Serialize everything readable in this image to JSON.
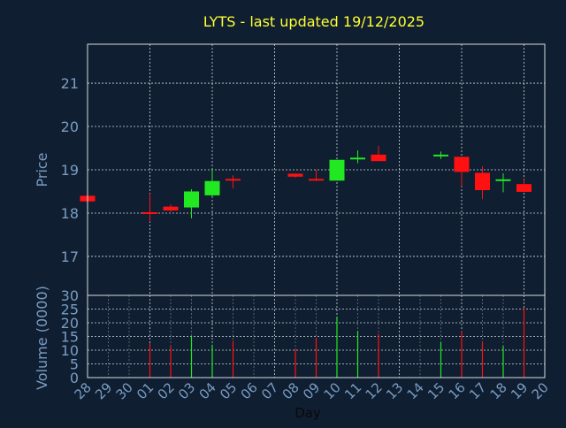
{
  "colors": {
    "background": "#0f1e30",
    "title": "#ffff33",
    "axis_text": "#7a9cc2",
    "grid": "#d0d8e0",
    "up": "#22e822",
    "down": "#ff1111",
    "frame": "#d8dde3"
  },
  "chart_data": [
    {
      "type": "candlestick",
      "title": "LYTS - last updated 19/12/2025",
      "ylabel": "Price",
      "ylim": [
        16.1,
        21.9
      ],
      "yticks": [
        17,
        18,
        19,
        20,
        21
      ],
      "grid": true,
      "x": [
        "28",
        "29",
        "30",
        "01",
        "02",
        "03",
        "04",
        "05",
        "06",
        "07",
        "08",
        "09",
        "10",
        "11",
        "12",
        "13",
        "14",
        "15",
        "16",
        "17",
        "18",
        "19",
        "20"
      ],
      "series": [
        {
          "candles": [
            {
              "x": "28",
              "open": 18.4,
              "close": 18.27,
              "high": 18.4,
              "low": 18.27
            },
            {
              "x": "01",
              "open": 18.02,
              "close": 17.98,
              "high": 18.45,
              "low": 17.8
            },
            {
              "x": "02",
              "open": 18.15,
              "close": 18.06,
              "high": 18.2,
              "low": 18.03
            },
            {
              "x": "03",
              "open": 18.13,
              "close": 18.5,
              "high": 18.55,
              "low": 17.88
            },
            {
              "x": "04",
              "open": 18.41,
              "close": 18.74,
              "high": 19.02,
              "low": 18.38
            },
            {
              "x": "05",
              "open": 18.79,
              "close": 18.75,
              "high": 18.87,
              "low": 18.57
            },
            {
              "x": "08",
              "open": 18.91,
              "close": 18.84,
              "high": 18.91,
              "low": 18.82
            },
            {
              "x": "09",
              "open": 18.79,
              "close": 18.75,
              "high": 19.0,
              "low": 18.74
            },
            {
              "x": "10",
              "open": 18.75,
              "close": 19.23,
              "high": 19.23,
              "low": 18.75
            },
            {
              "x": "11",
              "open": 19.27,
              "close": 19.28,
              "high": 19.45,
              "low": 19.15
            },
            {
              "x": "12",
              "open": 19.35,
              "close": 19.2,
              "high": 19.55,
              "low": 19.2
            },
            {
              "x": "15",
              "open": 19.33,
              "close": 19.35,
              "high": 19.42,
              "low": 19.25
            },
            {
              "x": "16",
              "open": 19.3,
              "close": 18.95,
              "high": 19.3,
              "low": 18.62
            },
            {
              "x": "17",
              "open": 18.93,
              "close": 18.53,
              "high": 19.08,
              "low": 18.32
            },
            {
              "x": "18",
              "open": 18.76,
              "close": 18.78,
              "high": 18.92,
              "low": 18.48
            },
            {
              "x": "19",
              "open": 18.67,
              "close": 18.49,
              "high": 18.78,
              "low": 18.49
            }
          ]
        }
      ]
    },
    {
      "type": "bar",
      "ylabel": "Volume (0000)",
      "xlabel": "Day",
      "ylim": [
        0,
        30
      ],
      "yticks": [
        0,
        5,
        10,
        15,
        20,
        25,
        30
      ],
      "grid": true,
      "x": [
        "28",
        "29",
        "30",
        "01",
        "02",
        "03",
        "04",
        "05",
        "06",
        "07",
        "08",
        "09",
        "10",
        "11",
        "12",
        "13",
        "14",
        "15",
        "16",
        "17",
        "18",
        "19",
        "20"
      ],
      "series": [
        {
          "values": [
            {
              "x": "01",
              "value": 12.5,
              "dir": "down"
            },
            {
              "x": "02",
              "value": 11.5,
              "dir": "down"
            },
            {
              "x": "03",
              "value": 15.0,
              "dir": "up"
            },
            {
              "x": "04",
              "value": 12.0,
              "dir": "up"
            },
            {
              "x": "05",
              "value": 13.5,
              "dir": "down"
            },
            {
              "x": "08",
              "value": 10.5,
              "dir": "down"
            },
            {
              "x": "09",
              "value": 14.5,
              "dir": "down"
            },
            {
              "x": "10",
              "value": 22.0,
              "dir": "up"
            },
            {
              "x": "11",
              "value": 17.0,
              "dir": "up"
            },
            {
              "x": "12",
              "value": 16.0,
              "dir": "down"
            },
            {
              "x": "15",
              "value": 13.0,
              "dir": "up"
            },
            {
              "x": "16",
              "value": 17.0,
              "dir": "down"
            },
            {
              "x": "17",
              "value": 13.0,
              "dir": "down"
            },
            {
              "x": "18",
              "value": 11.5,
              "dir": "up"
            },
            {
              "x": "19",
              "value": 25.5,
              "dir": "down"
            }
          ]
        }
      ]
    }
  ]
}
